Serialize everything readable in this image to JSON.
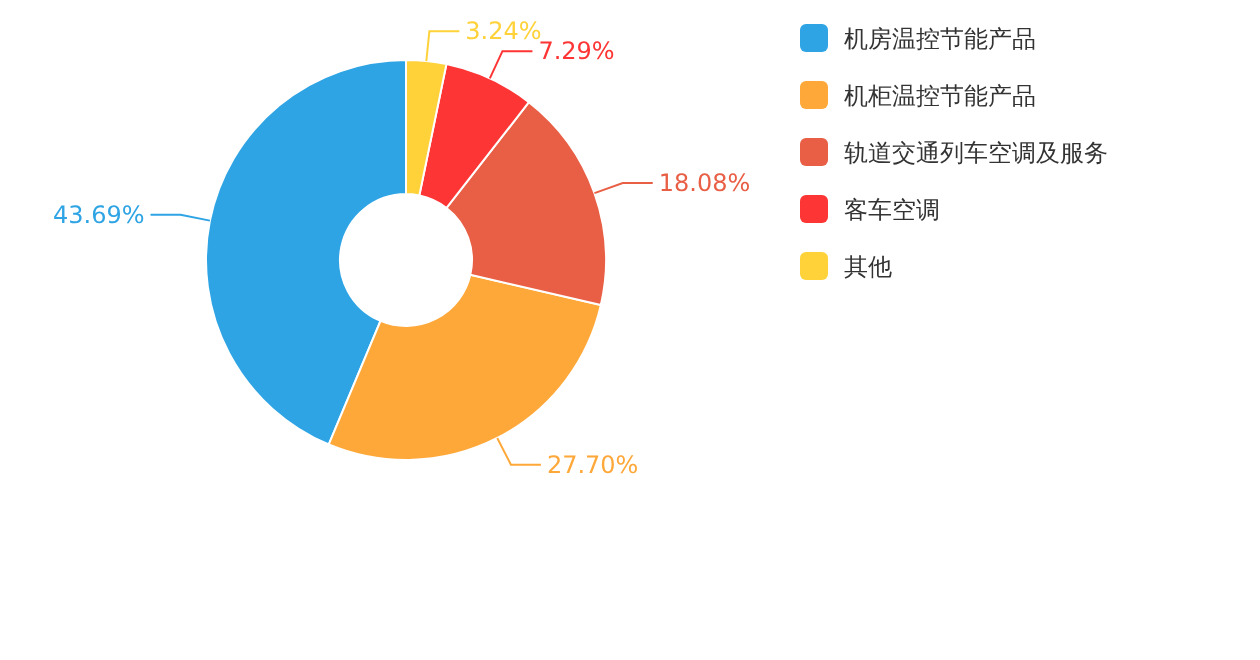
{
  "chart_data": {
    "type": "donut",
    "categories": [
      "机房温控节能产品",
      "机柜温控节能产品",
      "轨道交通列车空调及服务",
      "客车空调",
      "其他"
    ],
    "values": [
      43.69,
      27.7,
      18.08,
      7.29,
      3.24
    ],
    "value_labels": [
      "43.69%",
      "27.70%",
      "18.08%",
      "7.29%",
      "3.24%"
    ],
    "colors": [
      "#2ea4e5",
      "#ffa83a",
      "#e95f45",
      "#fe3535",
      "#ffd23a"
    ],
    "legend": "top right"
  }
}
